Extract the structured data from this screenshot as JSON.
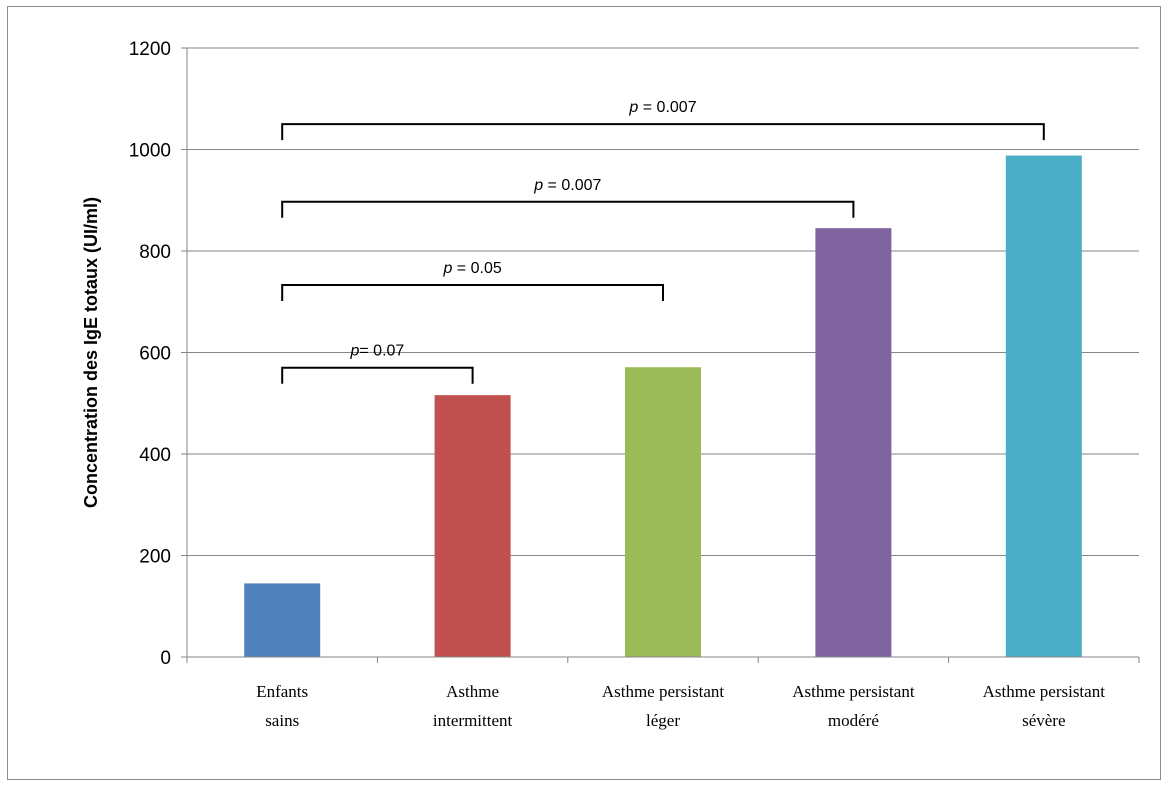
{
  "chart_data": {
    "type": "bar",
    "title": "",
    "xlabel": "",
    "ylabel": "Concentration des  IgE totaux (UI/ml)",
    "ylim": [
      0,
      1200
    ],
    "yticks": [
      0,
      200,
      400,
      600,
      800,
      1000,
      1200
    ],
    "grid": true,
    "categories": [
      [
        "Enfants",
        "sains"
      ],
      [
        "Asthme",
        "intermittent"
      ],
      [
        "Asthme persistant",
        "léger"
      ],
      [
        "Asthme persistant",
        "modéré"
      ],
      [
        "Asthme persistant",
        "sévère"
      ]
    ],
    "values": [
      145,
      516,
      571,
      845,
      988
    ],
    "colors": [
      "#4f81bd",
      "#c0504d",
      "#9bbb59",
      "#8064a2",
      "#4bacc6"
    ],
    "annotations": [
      {
        "from": 0,
        "to": 1,
        "level": 570,
        "p_symbol": "p",
        "text": "= 0.07"
      },
      {
        "from": 0,
        "to": 2,
        "level": 733,
        "p_symbol": "p",
        "text": " = 0.05"
      },
      {
        "from": 0,
        "to": 3,
        "level": 897,
        "p_symbol": "p",
        "text": " = 0.007"
      },
      {
        "from": 0,
        "to": 4,
        "level": 1050,
        "p_symbol": "p",
        "text": " = 0.007"
      }
    ]
  }
}
